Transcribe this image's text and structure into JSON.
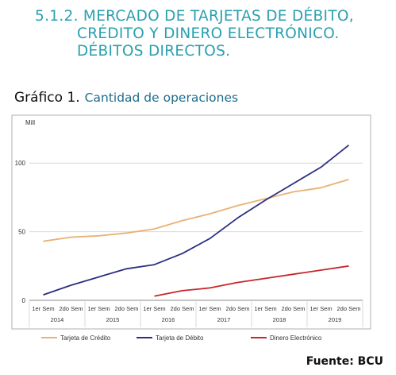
{
  "section": {
    "line1": "5.1.2. MERCADO DE TARJETAS DE DÉBITO,",
    "line2": "CRÉDITO Y DINERO ELECTRÓNICO.",
    "line3": "DÉBITOS DIRECTOS."
  },
  "figure": {
    "number": "Gráfico 1.",
    "title": "Cantidad de operaciones",
    "source": "Fuente: BCU"
  },
  "colors": {
    "credito": "#e8b273",
    "debito": "#2b2f7f",
    "dinero": "#c8262b",
    "grid": "#d9d9d9",
    "border": "#b0b0b0"
  },
  "chart_data": {
    "type": "line",
    "ylabel": "Mill",
    "ylim": [
      0,
      125
    ],
    "yticks": [
      0,
      50,
      100
    ],
    "grid": "horizontal",
    "legend_position": "bottom",
    "categories": [
      "1er Sem",
      "2do Sem",
      "1er Sem",
      "2do Sem",
      "1er Sem",
      "2do Sem",
      "1er Sem",
      "2do Sem",
      "1er Sem",
      "2do Sem",
      "1er Sem",
      "2do Sem"
    ],
    "years": [
      "2014",
      "2015",
      "2016",
      "2017",
      "2018",
      "2019"
    ],
    "series": [
      {
        "name": "Tarjeta de Crédito",
        "color_key": "credito",
        "values": [
          43,
          46,
          47,
          49,
          52,
          58,
          63,
          69,
          74,
          79,
          82,
          88
        ]
      },
      {
        "name": "Tarjeta de Débito",
        "color_key": "debito",
        "values": [
          4,
          11,
          17,
          23,
          26,
          34,
          45,
          60,
          73,
          85,
          97,
          113
        ]
      },
      {
        "name": "Dinero Electrónico",
        "color_key": "dinero",
        "values": [
          null,
          null,
          null,
          null,
          3,
          7,
          9,
          13,
          16,
          19,
          22,
          25
        ]
      }
    ]
  }
}
